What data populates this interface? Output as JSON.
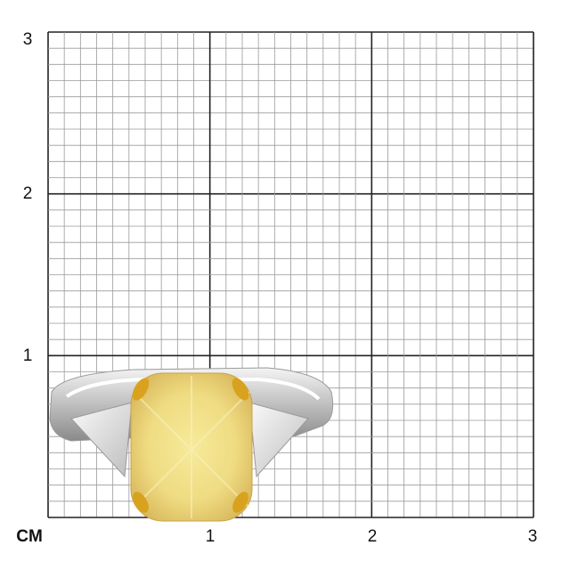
{
  "scale": {
    "unit_label": "CM",
    "y_labels": [
      "1",
      "2",
      "3"
    ],
    "x_labels": [
      "1",
      "2",
      "3"
    ],
    "range_cm": [
      0,
      3
    ],
    "minor_divisions_per_cm": 10
  },
  "product": {
    "type": "ring",
    "center_stone_color": "#f0e08a",
    "prong_color": "#d9a21e",
    "metal_color": "#d8d8d8",
    "side_stone_color": "#eeeeee"
  }
}
